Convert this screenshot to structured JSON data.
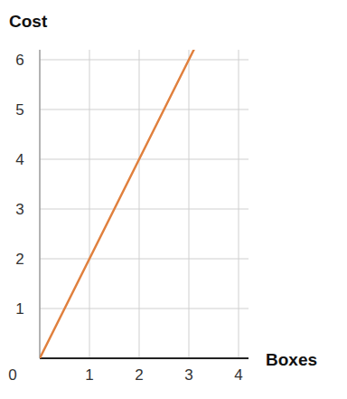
{
  "chart_data": {
    "type": "line",
    "x_label": "Boxes",
    "y_label": "Cost",
    "x": [
      0,
      3.1
    ],
    "values": [
      0,
      6.2
    ],
    "color": "#e0803e",
    "xlim": [
      0,
      4.2
    ],
    "ylim": [
      0,
      6.2
    ],
    "xticks": [
      0,
      1,
      2,
      3,
      4
    ],
    "yticks": [
      1,
      2,
      3,
      4,
      5,
      6
    ],
    "grid": true
  }
}
